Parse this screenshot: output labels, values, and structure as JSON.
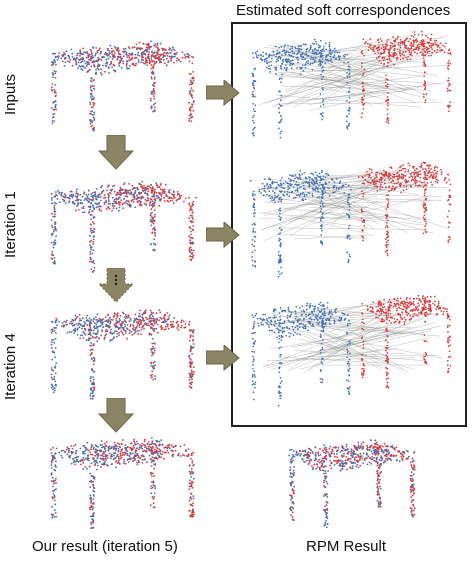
{
  "header": {
    "correspondences_title": "Estimated soft correspondences"
  },
  "rows": [
    {
      "label": "Inputs"
    },
    {
      "label": "Iteration 1"
    },
    {
      "label": "Iteration 4"
    }
  ],
  "captions": {
    "ours": "Our result (iteration 5)",
    "rpm": "RPM Result"
  },
  "colors": {
    "blue": "#3f6fb8",
    "red": "#d8383a",
    "arrow_fill": "#8b8565",
    "arrow_stroke": "#6b6547",
    "line": "#8e8e8e",
    "frame": "#222222"
  }
}
